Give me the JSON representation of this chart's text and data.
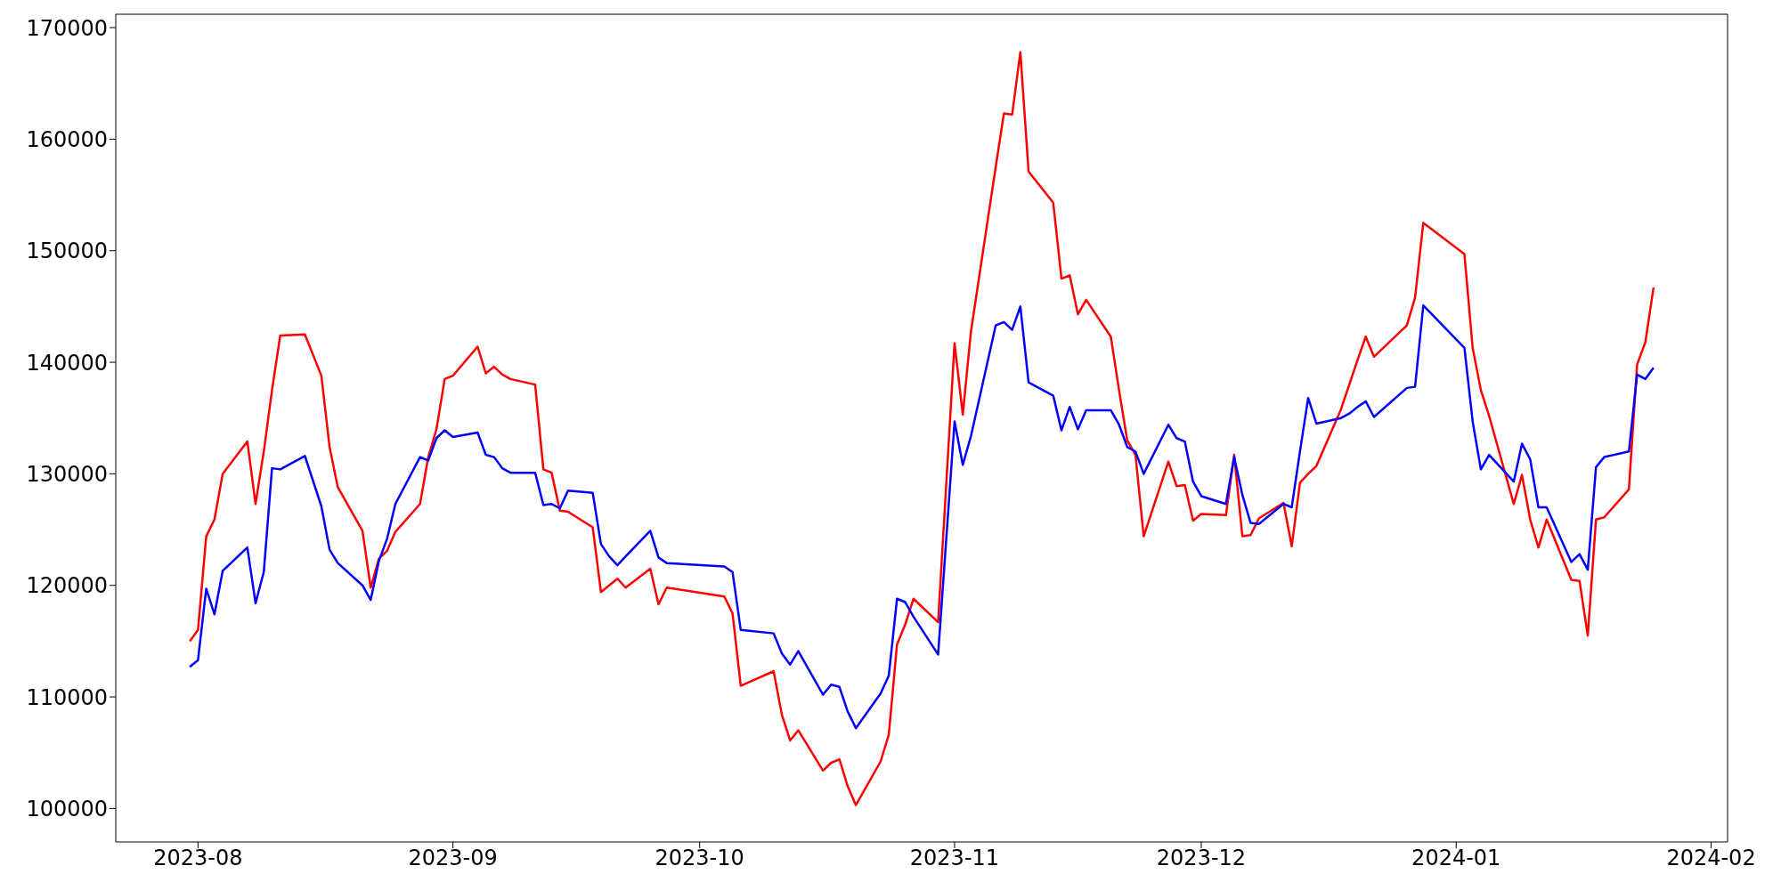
{
  "chart_data": {
    "type": "line",
    "x": [
      "2023-07-31",
      "2023-08-01",
      "2023-08-02",
      "2023-08-03",
      "2023-08-04",
      "2023-08-07",
      "2023-08-08",
      "2023-08-09",
      "2023-08-10",
      "2023-08-11",
      "2023-08-14",
      "2023-08-16",
      "2023-08-17",
      "2023-08-18",
      "2023-08-21",
      "2023-08-22",
      "2023-08-23",
      "2023-08-24",
      "2023-08-25",
      "2023-08-28",
      "2023-08-29",
      "2023-08-30",
      "2023-08-31",
      "2023-09-01",
      "2023-09-04",
      "2023-09-05",
      "2023-09-06",
      "2023-09-07",
      "2023-09-08",
      "2023-09-11",
      "2023-09-12",
      "2023-09-13",
      "2023-09-14",
      "2023-09-15",
      "2023-09-18",
      "2023-09-19",
      "2023-09-20",
      "2023-09-21",
      "2023-09-22",
      "2023-09-25",
      "2023-09-26",
      "2023-09-27",
      "2023-10-04",
      "2023-10-05",
      "2023-10-06",
      "2023-10-10",
      "2023-10-11",
      "2023-10-12",
      "2023-10-13",
      "2023-10-16",
      "2023-10-17",
      "2023-10-18",
      "2023-10-19",
      "2023-10-20",
      "2023-10-23",
      "2023-10-24",
      "2023-10-25",
      "2023-10-26",
      "2023-10-27",
      "2023-10-30",
      "2023-11-01",
      "2023-11-02",
      "2023-11-03",
      "2023-11-06",
      "2023-11-07",
      "2023-11-08",
      "2023-11-09",
      "2023-11-10",
      "2023-11-13",
      "2023-11-14",
      "2023-11-15",
      "2023-11-16",
      "2023-11-17",
      "2023-11-20",
      "2023-11-21",
      "2023-11-22",
      "2023-11-23",
      "2023-11-24",
      "2023-11-27",
      "2023-11-28",
      "2023-11-29",
      "2023-11-30",
      "2023-12-01",
      "2023-12-04",
      "2023-12-05",
      "2023-12-06",
      "2023-12-07",
      "2023-12-08",
      "2023-12-11",
      "2023-12-12",
      "2023-12-13",
      "2023-12-14",
      "2023-12-15",
      "2023-12-18",
      "2023-12-19",
      "2023-12-20",
      "2023-12-21",
      "2023-12-22",
      "2023-12-26",
      "2023-12-27",
      "2023-12-28",
      "2024-01-02",
      "2024-01-03",
      "2024-01-04",
      "2024-01-05",
      "2024-01-08",
      "2024-01-09",
      "2024-01-10",
      "2024-01-11",
      "2024-01-12",
      "2024-01-15",
      "2024-01-16",
      "2024-01-17",
      "2024-01-18",
      "2024-01-19",
      "2024-01-22",
      "2024-01-23",
      "2024-01-24",
      "2024-01-25"
    ],
    "series": [
      {
        "color": "#ff0000",
        "values": [
          115000,
          116000,
          124400,
          125900,
          130000,
          132900,
          127300,
          132000,
          137500,
          142400,
          142500,
          138800,
          132400,
          128800,
          124900,
          119800,
          122400,
          123100,
          124800,
          127300,
          131500,
          134000,
          138500,
          138800,
          141400,
          139000,
          139600,
          138900,
          138500,
          138000,
          130400,
          130100,
          126700,
          126600,
          125200,
          119400,
          120000,
          120600,
          119800,
          121500,
          118300,
          119800,
          119000,
          117500,
          111000,
          112300,
          108400,
          106100,
          107000,
          103400,
          104100,
          104400,
          102000,
          100300,
          104200,
          106600,
          114700,
          116500,
          118800,
          116700,
          141700,
          135300,
          142800,
          157500,
          162300,
          162200,
          167800,
          157100,
          154300,
          147500,
          147800,
          144300,
          145600,
          142300,
          137500,
          133000,
          131700,
          124400,
          131100,
          128900,
          129000,
          125800,
          126400,
          126300,
          131700,
          124400,
          124500,
          126000,
          127400,
          123500,
          129200,
          130000,
          130700,
          135800,
          138000,
          140200,
          142300,
          140500,
          143300,
          145800,
          152500,
          149700,
          141300,
          137500,
          135200,
          127300,
          129900,
          125900,
          123400,
          125900,
          120500,
          120400,
          115500,
          125900,
          126100,
          128600,
          139800,
          141800,
          146700
        ]
      },
      {
        "color": "#0000ff",
        "values": [
          112700,
          113300,
          119700,
          117400,
          121300,
          123400,
          118400,
          121200,
          130500,
          130400,
          131600,
          127100,
          123200,
          122000,
          120000,
          118700,
          122200,
          124200,
          127300,
          131500,
          131200,
          133200,
          133900,
          133300,
          133700,
          131700,
          131500,
          130500,
          130100,
          130100,
          127200,
          127300,
          126900,
          128500,
          128300,
          123700,
          122600,
          121800,
          122600,
          124900,
          122500,
          122000,
          121700,
          121200,
          116000,
          115700,
          113900,
          112900,
          114100,
          110200,
          111100,
          110900,
          108700,
          107200,
          110300,
          111900,
          118800,
          118500,
          117200,
          113800,
          134700,
          130800,
          133400,
          143300,
          143600,
          142900,
          145000,
          138200,
          137000,
          133900,
          136000,
          134000,
          135700,
          135700,
          134400,
          132400,
          132000,
          130000,
          134400,
          133200,
          132900,
          129300,
          128000,
          127300,
          131500,
          128100,
          125600,
          125500,
          127300,
          127000,
          132000,
          136800,
          134500,
          135000,
          135400,
          136000,
          136500,
          135100,
          137700,
          137800,
          145100,
          141300,
          134700,
          130400,
          131700,
          129300,
          132700,
          131300,
          127000,
          127000,
          122100,
          122800,
          121400,
          130600,
          131500,
          132000,
          138900,
          138500,
          139500
        ]
      }
    ],
    "xlim": [
      "2023-07-22",
      "2024-02-03"
    ],
    "xticks": [
      "2023-08",
      "2023-09",
      "2023-10",
      "2023-11",
      "2023-12",
      "2024-01",
      "2024-02"
    ],
    "ylim": [
      97000,
      171200
    ],
    "yticks": [
      100000,
      110000,
      120000,
      130000,
      140000,
      150000,
      160000,
      170000
    ],
    "grid": false,
    "legend": false
  }
}
